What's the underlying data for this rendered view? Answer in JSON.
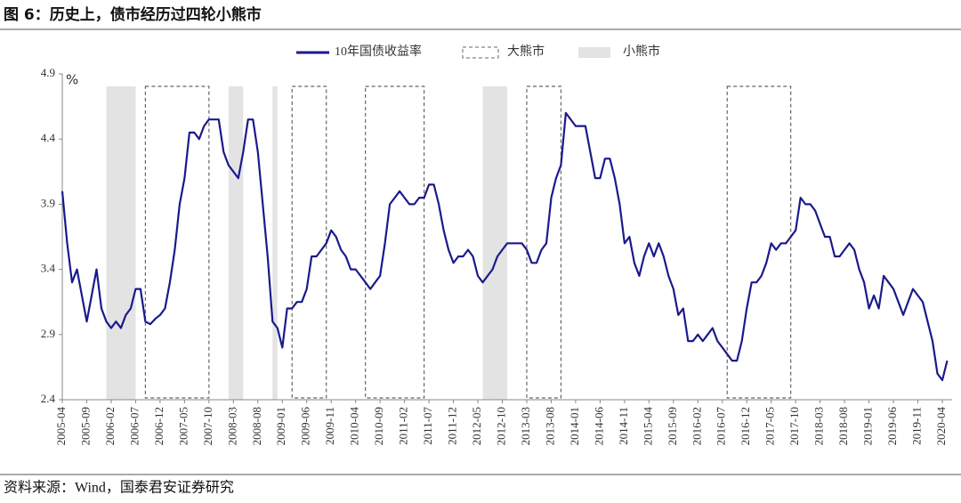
{
  "header": {
    "title": "图 6：历史上，债市经历过四轮小熊市"
  },
  "chart_data": {
    "type": "line",
    "y_label": "%",
    "x": [
      "2005-04",
      "2005-05",
      "2005-06",
      "2005-07",
      "2005-08",
      "2005-09",
      "2005-10",
      "2005-11",
      "2005-12",
      "2006-01",
      "2006-02",
      "2006-03",
      "2006-04",
      "2006-05",
      "2006-06",
      "2006-07",
      "2006-08",
      "2006-09",
      "2006-10",
      "2006-11",
      "2006-12",
      "2007-01",
      "2007-02",
      "2007-03",
      "2007-04",
      "2007-05",
      "2007-06",
      "2007-07",
      "2007-08",
      "2007-09",
      "2007-10",
      "2007-11",
      "2007-12",
      "2008-01",
      "2008-02",
      "2008-03",
      "2008-04",
      "2008-05",
      "2008-06",
      "2008-07",
      "2008-08",
      "2008-09",
      "2008-10",
      "2008-11",
      "2008-12",
      "2009-01",
      "2009-02",
      "2009-03",
      "2009-04",
      "2009-05",
      "2009-06",
      "2009-07",
      "2009-08",
      "2009-09",
      "2009-10",
      "2009-11",
      "2009-12",
      "2010-01",
      "2010-02",
      "2010-03",
      "2010-04",
      "2010-05",
      "2010-06",
      "2010-07",
      "2010-08",
      "2010-09",
      "2010-10",
      "2010-11",
      "2010-12",
      "2011-01",
      "2011-02",
      "2011-03",
      "2011-04",
      "2011-05",
      "2011-06",
      "2011-07",
      "2011-08",
      "2011-09",
      "2011-10",
      "2011-11",
      "2011-12",
      "2012-01",
      "2012-02",
      "2012-03",
      "2012-04",
      "2012-05",
      "2012-06",
      "2012-07",
      "2012-08",
      "2012-09",
      "2012-10",
      "2012-11",
      "2012-12",
      "2013-01",
      "2013-02",
      "2013-03",
      "2013-04",
      "2013-05",
      "2013-06",
      "2013-07",
      "2013-08",
      "2013-09",
      "2013-10",
      "2013-11",
      "2013-12",
      "2014-01",
      "2014-02",
      "2014-03",
      "2014-04",
      "2014-05",
      "2014-06",
      "2014-07",
      "2014-08",
      "2014-09",
      "2014-10",
      "2014-11",
      "2014-12",
      "2015-01",
      "2015-02",
      "2015-03",
      "2015-04",
      "2015-05",
      "2015-06",
      "2015-07",
      "2015-08",
      "2015-09",
      "2015-10",
      "2015-11",
      "2015-12",
      "2016-01",
      "2016-02",
      "2016-03",
      "2016-04",
      "2016-05",
      "2016-06",
      "2016-07",
      "2016-08",
      "2016-09",
      "2016-10",
      "2016-11",
      "2016-12",
      "2017-01",
      "2017-02",
      "2017-03",
      "2017-04",
      "2017-05",
      "2017-06",
      "2017-07",
      "2017-08",
      "2017-09",
      "2017-10",
      "2017-11",
      "2017-12",
      "2018-01",
      "2018-02",
      "2018-03",
      "2018-04",
      "2018-05",
      "2018-06",
      "2018-07",
      "2018-08",
      "2018-09",
      "2018-10",
      "2018-11",
      "2018-12",
      "2019-01",
      "2019-02",
      "2019-03",
      "2019-04",
      "2019-05",
      "2019-06",
      "2019-07",
      "2019-08",
      "2019-09",
      "2019-10",
      "2019-11",
      "2019-12",
      "2020-01",
      "2020-02",
      "2020-03",
      "2020-04",
      "2020-05"
    ],
    "series": [
      {
        "name": "10年国债收益率",
        "color": "#1a1a8c",
        "values": [
          4.0,
          3.6,
          3.3,
          3.4,
          3.2,
          3.0,
          3.2,
          3.4,
          3.1,
          3.0,
          2.95,
          3.0,
          2.95,
          3.05,
          3.1,
          3.25,
          3.25,
          3.0,
          2.98,
          3.02,
          3.05,
          3.1,
          3.3,
          3.55,
          3.9,
          4.1,
          4.45,
          4.45,
          4.4,
          4.5,
          4.55,
          4.55,
          4.55,
          4.3,
          4.2,
          4.15,
          4.1,
          4.3,
          4.55,
          4.55,
          4.3,
          3.9,
          3.5,
          3.0,
          2.95,
          2.8,
          3.1,
          3.1,
          3.15,
          3.15,
          3.25,
          3.5,
          3.5,
          3.55,
          3.6,
          3.7,
          3.65,
          3.55,
          3.5,
          3.4,
          3.4,
          3.35,
          3.3,
          3.25,
          3.3,
          3.35,
          3.6,
          3.9,
          3.95,
          4.0,
          3.95,
          3.9,
          3.9,
          3.95,
          3.95,
          4.05,
          4.05,
          3.9,
          3.7,
          3.55,
          3.45,
          3.5,
          3.5,
          3.55,
          3.5,
          3.35,
          3.3,
          3.35,
          3.4,
          3.5,
          3.55,
          3.6,
          3.6,
          3.6,
          3.6,
          3.55,
          3.45,
          3.45,
          3.55,
          3.6,
          3.95,
          4.1,
          4.2,
          4.6,
          4.55,
          4.5,
          4.5,
          4.5,
          4.3,
          4.1,
          4.1,
          4.25,
          4.25,
          4.1,
          3.9,
          3.6,
          3.65,
          3.45,
          3.35,
          3.5,
          3.6,
          3.5,
          3.6,
          3.5,
          3.35,
          3.25,
          3.05,
          3.1,
          2.85,
          2.85,
          2.9,
          2.85,
          2.9,
          2.95,
          2.85,
          2.8,
          2.75,
          2.7,
          2.7,
          2.85,
          3.1,
          3.3,
          3.3,
          3.35,
          3.45,
          3.6,
          3.55,
          3.6,
          3.6,
          3.65,
          3.7,
          3.95,
          3.9,
          3.9,
          3.85,
          3.75,
          3.65,
          3.65,
          3.5,
          3.5,
          3.55,
          3.6,
          3.55,
          3.4,
          3.3,
          3.1,
          3.2,
          3.1,
          3.35,
          3.3,
          3.25,
          3.15,
          3.05,
          3.15,
          3.25,
          3.2,
          3.15,
          3.0,
          2.85,
          2.6,
          2.55,
          2.7
        ]
      }
    ],
    "bands": [
      {
        "name": "大熊市",
        "style": "dashed",
        "color": "#666666",
        "periods": [
          [
            "2006-09",
            "2007-10"
          ],
          [
            "2009-03",
            "2009-10"
          ],
          [
            "2010-06",
            "2011-06"
          ],
          [
            "2013-03",
            "2013-10"
          ],
          [
            "2016-08",
            "2017-09"
          ]
        ]
      },
      {
        "name": "小熊市",
        "style": "shaded",
        "color": "#e3e3e3",
        "periods": [
          [
            "2006-01",
            "2006-07"
          ],
          [
            "2008-02",
            "2008-05"
          ],
          [
            "2008-11",
            "2008-12"
          ],
          [
            "2012-06",
            "2012-11"
          ]
        ]
      }
    ],
    "xlim": [
      "2005-04",
      "2020-06"
    ],
    "xticks": [
      "2005-04",
      "2005-09",
      "2006-02",
      "2006-07",
      "2006-12",
      "2007-05",
      "2007-10",
      "2008-03",
      "2008-08",
      "2009-01",
      "2009-06",
      "2009-11",
      "2010-04",
      "2010-09",
      "2011-02",
      "2011-07",
      "2011-12",
      "2012-05",
      "2012-10",
      "2013-03",
      "2013-08",
      "2014-01",
      "2014-06",
      "2014-11",
      "2015-04",
      "2015-09",
      "2016-02",
      "2016-07",
      "2016-12",
      "2017-05",
      "2017-10",
      "2018-03",
      "2018-08",
      "2019-01",
      "2019-06",
      "2019-11",
      "2020-04"
    ],
    "ylim": [
      2.4,
      4.9
    ],
    "yticks": [
      2.4,
      2.9,
      3.4,
      3.9,
      4.4,
      4.9
    ],
    "grid": false,
    "legend": "top"
  },
  "footer": {
    "source": "资料来源：Wind，国泰君安证券研究"
  }
}
